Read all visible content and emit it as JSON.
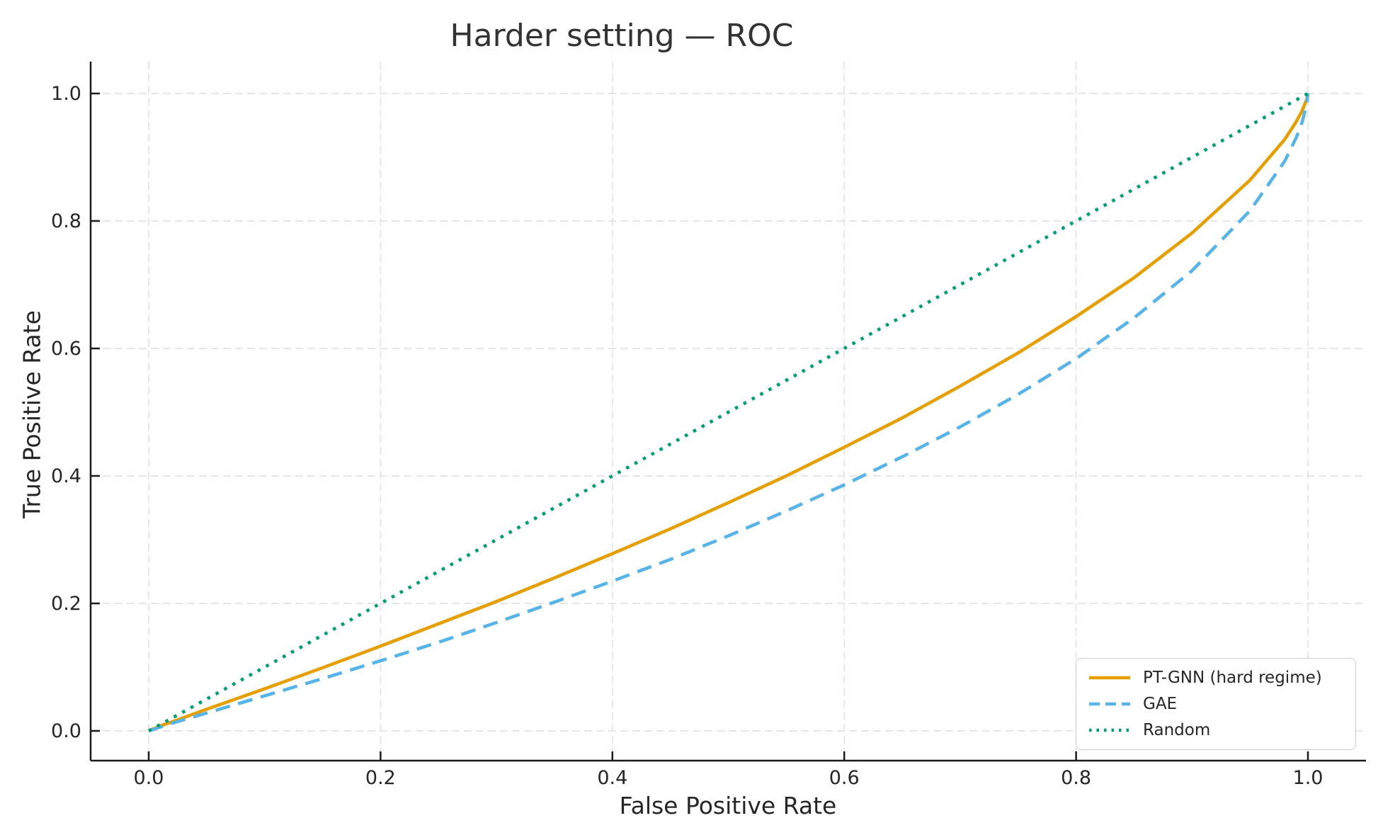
{
  "chart_data": {
    "type": "line",
    "title": "Harder setting — ROC",
    "xlabel": "False Positive Rate",
    "ylabel": "True Positive Rate",
    "xlim": [
      -0.05,
      1.05
    ],
    "ylim": [
      -0.047,
      1.05
    ],
    "grid": true,
    "grid_style": "dashed",
    "legend_position": "lower right",
    "xticks": {
      "values": [
        0,
        0.2,
        0.4,
        0.6,
        0.8,
        1.0
      ],
      "labels": [
        "0.0",
        "0.2",
        "0.4",
        "0.6",
        "0.8",
        "1.0"
      ]
    },
    "yticks": {
      "values": [
        0,
        0.2,
        0.4,
        0.6,
        0.8,
        1.0
      ],
      "labels": [
        "0.0",
        "0.2",
        "0.4",
        "0.6",
        "0.8",
        "1.0"
      ]
    },
    "series": [
      {
        "name": "PT-GNN (hard regime)",
        "color": "#E69F00",
        "line_style": "solid",
        "points": [
          [
            0,
            0
          ],
          [
            0.01,
            0.008
          ],
          [
            0.02,
            0.014
          ],
          [
            0.05,
            0.034
          ],
          [
            0.1,
            0.066
          ],
          [
            0.15,
            0.099
          ],
          [
            0.2,
            0.133
          ],
          [
            0.25,
            0.168
          ],
          [
            0.3,
            0.203
          ],
          [
            0.35,
            0.24
          ],
          [
            0.4,
            0.278
          ],
          [
            0.45,
            0.317
          ],
          [
            0.5,
            0.358
          ],
          [
            0.55,
            0.4
          ],
          [
            0.6,
            0.445
          ],
          [
            0.65,
            0.491
          ],
          [
            0.7,
            0.541
          ],
          [
            0.75,
            0.593
          ],
          [
            0.8,
            0.65
          ],
          [
            0.85,
            0.711
          ],
          [
            0.9,
            0.781
          ],
          [
            0.95,
            0.864
          ],
          [
            0.98,
            0.928
          ],
          [
            0.99,
            0.956
          ],
          [
            0.995,
            0.973
          ],
          [
            0.999,
            0.991
          ],
          [
            1,
            1
          ]
        ]
      },
      {
        "name": "GAE",
        "color": "#56B4E9",
        "line_style": "dashed",
        "points": [
          [
            0,
            0
          ],
          [
            0.01,
            0.006
          ],
          [
            0.02,
            0.012
          ],
          [
            0.05,
            0.028
          ],
          [
            0.1,
            0.055
          ],
          [
            0.15,
            0.082
          ],
          [
            0.2,
            0.11
          ],
          [
            0.25,
            0.139
          ],
          [
            0.3,
            0.17
          ],
          [
            0.35,
            0.202
          ],
          [
            0.4,
            0.235
          ],
          [
            0.45,
            0.269
          ],
          [
            0.5,
            0.306
          ],
          [
            0.55,
            0.345
          ],
          [
            0.6,
            0.386
          ],
          [
            0.65,
            0.43
          ],
          [
            0.7,
            0.477
          ],
          [
            0.75,
            0.528
          ],
          [
            0.8,
            0.584
          ],
          [
            0.85,
            0.648
          ],
          [
            0.9,
            0.722
          ],
          [
            0.95,
            0.816
          ],
          [
            0.98,
            0.894
          ],
          [
            0.99,
            0.931
          ],
          [
            0.995,
            0.955
          ],
          [
            0.999,
            0.984
          ],
          [
            1,
            1
          ]
        ]
      },
      {
        "name": "Random",
        "color": "#009E73",
        "line_style": "dotted",
        "points": [
          [
            0,
            0
          ],
          [
            1,
            1
          ]
        ]
      }
    ]
  },
  "styles": {
    "background": "#ffffff",
    "spine_color": "#1a1a1a",
    "grid_color": "#e3e3e3",
    "tick_text_color": "#262626",
    "title_color": "#333333",
    "legend_border_color": "#cccccc"
  }
}
